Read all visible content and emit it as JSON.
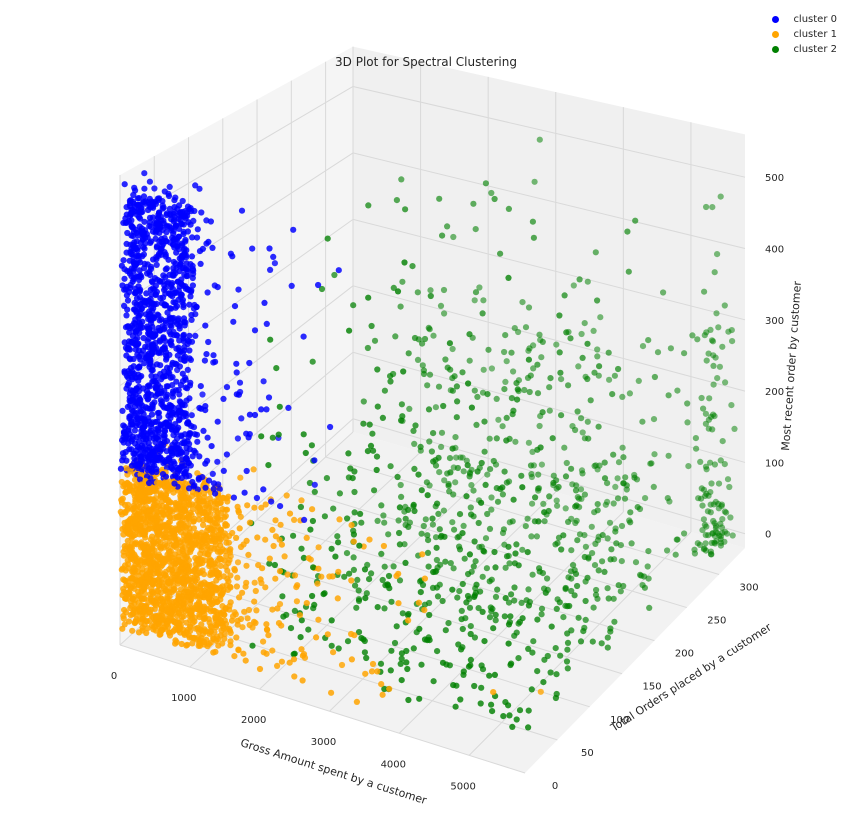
{
  "chart_data": {
    "type": "scatter",
    "projection": "3d",
    "title": "3D Plot for Spectral Clustering",
    "xlabel": "Gross Amount spent by a customer",
    "ylabel": "Total Orders placed by a customer",
    "zlabel": "Most recent order by customer",
    "xlim": [
      0,
      5800
    ],
    "ylim": [
      0,
      340
    ],
    "zlim": [
      -20,
      560
    ],
    "x_ticks": [
      0,
      1000,
      2000,
      3000,
      4000,
      5000
    ],
    "y_ticks": [
      0,
      50,
      100,
      150,
      200,
      250,
      300
    ],
    "z_ticks": [
      0,
      100,
      200,
      300,
      400,
      500
    ],
    "grid": true,
    "legend_position": "top-right",
    "series": [
      {
        "name": "cluster 0",
        "color": "#0000ff",
        "description": "customers with low-to-moderate spend and low order counts but high recency values (z roughly 190-560)"
      },
      {
        "name": "cluster 1",
        "color": "#ffa500",
        "description": "customers with low-to-moderate spend and low order counts with recency below about 200"
      },
      {
        "name": "cluster 2",
        "color": "#008000",
        "description": "customers with high spend and/or many orders, mostly low recency"
      }
    ]
  }
}
